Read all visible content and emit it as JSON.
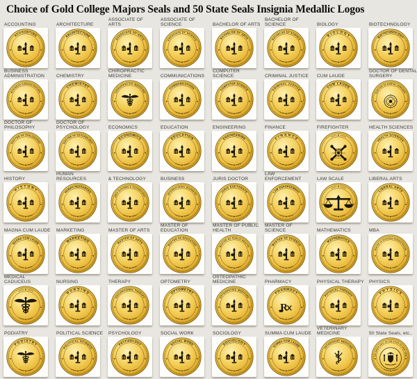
{
  "page": {
    "title": "Choice of Gold College Majors Seals and 50 State Seals Insignia Medallic Logos",
    "background": "#e8e6e0"
  },
  "colors": {
    "gold_highlight": "#fdf0b0",
    "gold_light": "#f6d464",
    "gold_mid": "#e9b93a",
    "gold_dark": "#cf9a20",
    "gold_edge": "#b07f12",
    "ring_stroke": "#6e520c",
    "engraving": "#2a2008",
    "card_background": "#fdfdfc",
    "label_text": "#3a3a3a"
  },
  "decorations": {
    "side_star": "★",
    "bottom_arc": "««««    ★    »»»»",
    "top_arc_no_text": "»»»»    ★    ««««"
  },
  "seals": [
    {
      "label": "ACCOUNTING",
      "seal_text": "ACCOUNTING",
      "glyph": "torch"
    },
    {
      "label": "ARCHITECTURE",
      "seal_text": "ARCHITECTURE",
      "glyph": "torch"
    },
    {
      "label": "ASSOCIATE OF ARTS",
      "seal_text": "ASSOCIATE OF ARTS",
      "glyph": "torch"
    },
    {
      "label": "ASSOCIATE OF SCIENCE",
      "seal_text": "ASSOCIATE OF SCIENCE",
      "glyph": "torch"
    },
    {
      "label": "BACHELOR OF ARTS",
      "seal_text": "BACHELOR OF ARTS",
      "glyph": "torch"
    },
    {
      "label": "BACHELOR OF SCIENCE",
      "seal_text": "BACHELOR OF SCIENCE",
      "glyph": "torch"
    },
    {
      "label": "BIOLOGY",
      "seal_text": "BIOLOGY",
      "glyph": "torch"
    },
    {
      "label": "BIOTECHNOLOGY",
      "seal_text": "BIOTECHNOLOGY",
      "glyph": "torch"
    },
    {
      "label": "BUSINESS ADMINISTRATION",
      "seal_text": "BUSINESS ADMINISTRATION",
      "glyph": "torch"
    },
    {
      "label": "CHEMISTRY",
      "seal_text": "CHEMISTRY",
      "glyph": "torch"
    },
    {
      "label": "CHIROPRACTIC MEDICINE",
      "seal_text": "CHIROPRACTIC MEDICINE",
      "glyph": "caduceus"
    },
    {
      "label": "COMMUNICATIONS",
      "seal_text": "COMMUNICATIONS",
      "glyph": "torch"
    },
    {
      "label": "COMPUTER SCIENCE",
      "seal_text": "COMPUTER SCIENCE",
      "glyph": "torch"
    },
    {
      "label": "CRIMINAL JUSTICE",
      "seal_text": "CRIMINAL JUSTICE",
      "glyph": "torch"
    },
    {
      "label": "CUM LAUDE",
      "seal_text": "CUM LAUDE",
      "glyph": "torch"
    },
    {
      "label": "DOCTOR OF DENTAL SURGERY",
      "seal_text": "DOCTOR OF DENTAL SURGERY",
      "glyph": "emblem"
    },
    {
      "label": "DOCTOR OF PHILOSOPHY",
      "seal_text": "DOCTOR OF PHILOSOPHY",
      "glyph": "torch"
    },
    {
      "label": "DOCTOR OF PSYCHOLOGY",
      "seal_text": "DOCTOR OF PSYCHOLOGY",
      "glyph": "torch"
    },
    {
      "label": "ECONOMICS",
      "seal_text": "ECONOMICS",
      "glyph": "torch"
    },
    {
      "label": "EDUCATION",
      "seal_text": "EDUCATION",
      "glyph": "torch"
    },
    {
      "label": "ENGINEERING",
      "seal_text": "ENGINEERING",
      "glyph": "torch"
    },
    {
      "label": "FINANCE",
      "seal_text": "FINANCE",
      "glyph": "torch"
    },
    {
      "label": "FIREFIGHTER",
      "seal_text": "",
      "glyph": "cross",
      "words": [
        "COURAGE",
        "HONOR",
        "DEDICATION",
        "PRIDE"
      ]
    },
    {
      "label": "HEALTH SCIENCES",
      "seal_text": "HEALTH SCIENCES",
      "glyph": "torch"
    },
    {
      "label": "HISTORY",
      "seal_text": "HISTORY",
      "glyph": "torch"
    },
    {
      "label": "HUMAN RESOURCES",
      "seal_text": "HUMAN RESOURCES",
      "glyph": "torch"
    },
    {
      "label": "& TECHNOLOGY",
      "seal_text": "INFO SYSTEMS & TECHNOLOGY",
      "glyph": "torch"
    },
    {
      "label": "BUSINESS",
      "seal_text": "INTERNATIONAL BUSINESS",
      "glyph": "torch"
    },
    {
      "label": "JURIS DOCTOR",
      "seal_text": "JURIS DOCTORATE",
      "glyph": "torch"
    },
    {
      "label": "LAW ENFORCEMENT",
      "seal_text": "LAW ENFORCEMENT",
      "glyph": "torch"
    },
    {
      "label": "LAW SCALE",
      "seal_text": "",
      "glyph": "scale",
      "big": true
    },
    {
      "label": "LIBERAL ARTS",
      "seal_text": "LIBERAL ARTS",
      "glyph": "torch"
    },
    {
      "label": "MAGNA CUM LAUDE",
      "seal_text": "MAGNA CUM LAUDE",
      "glyph": "torch"
    },
    {
      "label": "MARKETING",
      "seal_text": "MARKETING",
      "glyph": "torch"
    },
    {
      "label": "MASTER OF ARTS",
      "seal_text": "MASTER OF ARTS",
      "glyph": "torch"
    },
    {
      "label": "MASTER OF EDUCATION",
      "seal_text": "MASTER OF EDUCATION",
      "glyph": "torch"
    },
    {
      "label": "MASTER OF PUBLIC HEALTH",
      "seal_text": "MASTER OF PUBLIC HEALTH",
      "glyph": "torch"
    },
    {
      "label": "MASTER OF SCIENCE",
      "seal_text": "MASTER OF SCIENCE",
      "glyph": "torch"
    },
    {
      "label": "MATHEMATICS",
      "seal_text": "MATHEMATICS",
      "glyph": "torch"
    },
    {
      "label": "MBA",
      "seal_text": "MASTER OF BUSINESS ADMINISTRATION",
      "glyph": "torch"
    },
    {
      "label": "MEDICAL CADUCEUS",
      "seal_text": "",
      "glyph": "caduceus",
      "big": true
    },
    {
      "label": "NURSING",
      "seal_text": "NURSING",
      "glyph": "torch"
    },
    {
      "label": "THERAPY",
      "seal_text": "OCCUPATIONAL THERAPY",
      "glyph": "torch"
    },
    {
      "label": "OPTOMETRY",
      "seal_text": "OPTOMETRY",
      "glyph": "torch"
    },
    {
      "label": "OSTEOPATHIC MEDICINE",
      "seal_text": "OSTEOPATHIC MEDICINE",
      "glyph": "torch"
    },
    {
      "label": "PHARMACY",
      "seal_text": "PHARMACY",
      "glyph": "rx"
    },
    {
      "label": "PHYSICAL THERAPY",
      "seal_text": "PHYSICAL THERAPY",
      "glyph": "torch"
    },
    {
      "label": "PHYSICS",
      "seal_text": "PHYSICS",
      "glyph": "torch"
    },
    {
      "label": "PODIATRY",
      "seal_text": "PODIATRY",
      "glyph": "caduceus"
    },
    {
      "label": "POLITICAL SCIENCE",
      "seal_text": "POLITICAL SCIENCE",
      "glyph": "torch"
    },
    {
      "label": "PSYCHOLOGY",
      "seal_text": "PSYCHOLOGY",
      "glyph": "torch"
    },
    {
      "label": "SOCIAL WORK",
      "seal_text": "SOCIAL WORK",
      "glyph": "torch"
    },
    {
      "label": "SOCIOLOGY",
      "seal_text": "SOCIOLOGY",
      "glyph": "torch"
    },
    {
      "label": "SUMMA CUM LAUDE",
      "seal_text": "SUMMA CUM LAUDE",
      "glyph": "torch"
    },
    {
      "label": "VETERINARY MEDICINE",
      "seal_text": "VETERINARY MEDICINE",
      "glyph": "staff"
    },
    {
      "label": "50 State Seals, etc..",
      "seal_text": "THE GREAT SEAL OF THE STATE OF NEW YORK",
      "glyph": "crest"
    }
  ]
}
